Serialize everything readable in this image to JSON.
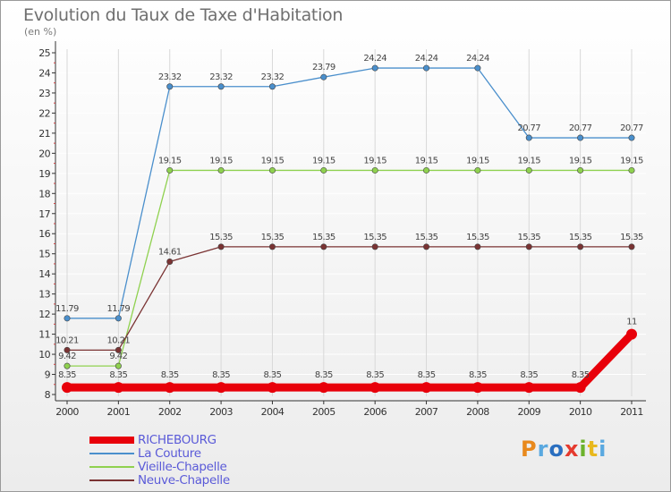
{
  "page": {
    "title": "Evolution du Taux de Taxe d'Habitation",
    "subtitle": "(en %)",
    "logo_text": "Proxiti",
    "logo_colors": [
      "#e8891d",
      "#5aa9e0",
      "#2a6fc0",
      "#e53a2e",
      "#6cb22c",
      "#e8b81d",
      "#5aa9e0"
    ]
  },
  "chart_data": {
    "type": "line",
    "title": "Evolution du Taux de Taxe d'Habitation",
    "subtitle": "(en %)",
    "xlabel": "",
    "ylabel": "",
    "categories": [
      "2000",
      "2001",
      "2002",
      "2003",
      "2004",
      "2005",
      "2006",
      "2007",
      "2008",
      "2009",
      "2010",
      "2011"
    ],
    "ylim": [
      8,
      25
    ],
    "yticks": [
      8,
      9,
      10,
      11,
      12,
      13,
      14,
      15,
      16,
      17,
      18,
      19,
      20,
      21,
      22,
      23,
      24,
      25
    ],
    "grid": true,
    "legend_position": "bottom-left",
    "series": [
      {
        "name": "La Couture",
        "color": "#4a8fcc",
        "values": [
          11.79,
          11.79,
          23.32,
          23.32,
          23.32,
          23.79,
          24.24,
          24.24,
          24.24,
          20.77,
          20.77,
          20.77
        ],
        "labels": [
          "11.79",
          "11.79",
          "23.32",
          "23.32",
          "23.32",
          "23.79",
          "24.24",
          "24.24",
          "24.24",
          "20.77",
          "20.77",
          "20.77"
        ]
      },
      {
        "name": "Vieille-Chapelle",
        "color": "#8fd14f",
        "values": [
          9.42,
          9.42,
          19.15,
          19.15,
          19.15,
          19.15,
          19.15,
          19.15,
          19.15,
          19.15,
          19.15,
          19.15
        ],
        "labels": [
          "9.42",
          "9.42",
          "19.15",
          "19.15",
          "19.15",
          "19.15",
          "19.15",
          "19.15",
          "19.15",
          "19.15",
          "19.15",
          "19.15"
        ]
      },
      {
        "name": "Neuve-Chapelle",
        "color": "#7a3333",
        "values": [
          10.21,
          10.21,
          14.61,
          15.35,
          15.35,
          15.35,
          15.35,
          15.35,
          15.35,
          15.35,
          15.35,
          15.35
        ],
        "labels": [
          "10.21",
          "10.21",
          "14.61",
          "15.35",
          "15.35",
          "15.35",
          "15.35",
          "15.35",
          "15.35",
          "15.35",
          "15.35",
          "15.35"
        ]
      },
      {
        "name": "RICHEBOURG",
        "color": "#e8000a",
        "emphasis": true,
        "values": [
          8.35,
          8.35,
          8.35,
          8.35,
          8.35,
          8.35,
          8.35,
          8.35,
          8.35,
          8.35,
          8.35,
          11
        ],
        "labels": [
          "8.35",
          "8.35",
          "8.35",
          "8.35",
          "8.35",
          "8.35",
          "8.35",
          "8.35",
          "8.35",
          "8.35",
          "8.35",
          "11"
        ]
      }
    ],
    "legend_order": [
      "RICHEBOURG",
      "La Couture",
      "Vieille-Chapelle",
      "Neuve-Chapelle"
    ]
  }
}
